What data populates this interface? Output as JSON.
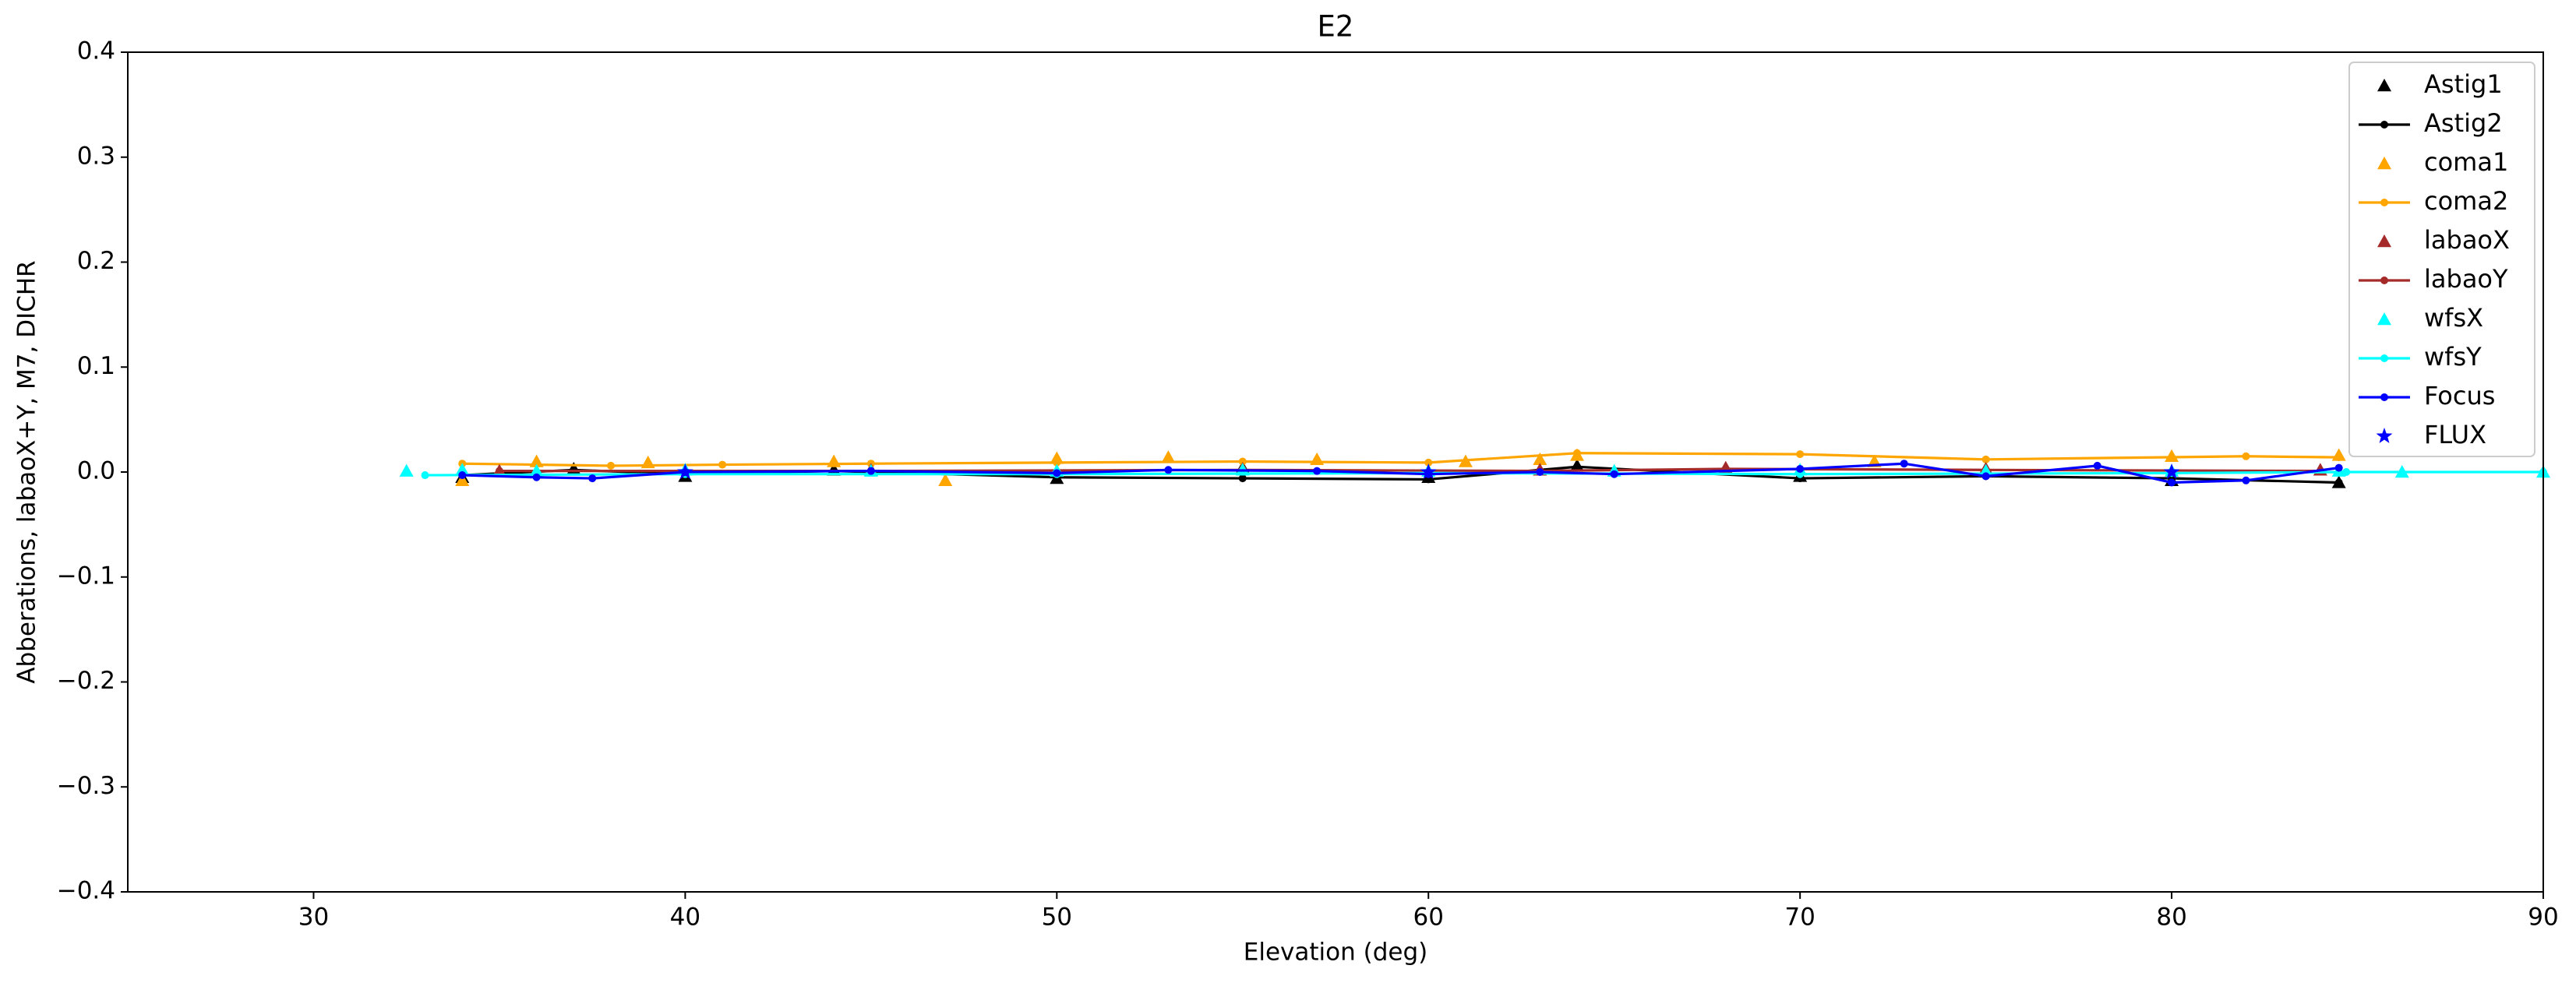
{
  "chart_data": {
    "type": "line",
    "title": "E2",
    "x_label": "Elevation (deg)",
    "y_label": "Abberations, labaoX+Y, M7, DICHR",
    "xlim": [
      25,
      90
    ],
    "xticks": [
      30,
      40,
      50,
      60,
      70,
      80,
      90
    ],
    "ylim": [
      -0.4,
      0.4
    ],
    "yticks": [
      {
        "value": -0.4,
        "label": "−0.4"
      },
      {
        "value": -0.3,
        "label": "−0.3"
      },
      {
        "value": -0.2,
        "label": "−0.2"
      },
      {
        "value": -0.1,
        "label": "−0.1"
      },
      {
        "value": 0,
        "label": "0.0"
      },
      0.1,
      0.2,
      0.3,
      0.4
    ],
    "grid": false,
    "legend": "upper right",
    "series": [
      {
        "name": "Astig1",
        "color": "#000000",
        "marker": "triangle",
        "line": false,
        "x": [
          34,
          37,
          40,
          44,
          50,
          55,
          60,
          64,
          70,
          75,
          80,
          84.5
        ],
        "values": [
          -0.005,
          0.003,
          -0.004,
          0.002,
          -0.006,
          0.004,
          -0.005,
          0.006,
          -0.004,
          0.003,
          -0.008,
          -0.01
        ]
      },
      {
        "name": "Astig2",
        "color": "#000000",
        "marker": "dot",
        "line": true,
        "x": [
          34,
          37,
          40,
          44,
          50,
          55,
          60,
          64,
          70,
          75,
          80,
          84.5
        ],
        "values": [
          -0.003,
          0.002,
          -0.002,
          0.001,
          -0.005,
          -0.006,
          -0.007,
          0.005,
          -0.006,
          -0.004,
          -0.006,
          -0.01
        ]
      },
      {
        "name": "coma1",
        "color": "#ffa500",
        "marker": "triangle",
        "line": false,
        "x": [
          34,
          36,
          39,
          44,
          47,
          50,
          53,
          57,
          61,
          63,
          64,
          72,
          80,
          84.5
        ],
        "values": [
          -0.008,
          0.01,
          0.009,
          0.01,
          -0.008,
          0.013,
          0.014,
          0.012,
          0.01,
          0.012,
          0.016,
          0.01,
          0.015,
          0.016
        ]
      },
      {
        "name": "coma2",
        "color": "#ffa500",
        "marker": "dot",
        "line": true,
        "x": [
          34,
          38,
          41,
          45,
          50,
          55,
          60,
          64,
          70,
          75,
          82,
          84.5
        ],
        "values": [
          0.008,
          0.006,
          0.007,
          0.008,
          0.009,
          0.01,
          0.009,
          0.018,
          0.017,
          0.012,
          0.015,
          0.014
        ]
      },
      {
        "name": "labaoX",
        "color": "#a52a2a",
        "marker": "triangle",
        "line": false,
        "x": [
          35,
          45,
          55,
          63,
          68,
          75,
          84
        ],
        "values": [
          0.001,
          0.002,
          0.003,
          0.002,
          0.004,
          0.003,
          0.002
        ]
      },
      {
        "name": "labaoY",
        "color": "#a52a2a",
        "marker": "dot",
        "line": true,
        "x": [
          35,
          45,
          55,
          63,
          68,
          75,
          84
        ],
        "values": [
          0.001,
          0.001,
          0.002,
          0.001,
          0.003,
          0.002,
          0.001
        ]
      },
      {
        "name": "wfsX",
        "color": "#00ffff",
        "marker": "triangle",
        "line": false,
        "x": [
          32.5,
          34,
          36,
          40,
          45,
          50,
          55,
          60,
          65,
          70,
          75,
          80,
          84.5,
          86.2,
          90
        ],
        "values": [
          0.001,
          0.002,
          0.001,
          0.002,
          0.001,
          0.001,
          0.002,
          0.001,
          0.001,
          0.002,
          0.001,
          0.001,
          0.001,
          0,
          0
        ]
      },
      {
        "name": "wfsY",
        "color": "#00ffff",
        "marker": "dot",
        "line": true,
        "x": [
          33,
          40,
          50,
          60,
          70,
          80,
          84.7,
          90
        ],
        "values": [
          -0.003,
          -0.002,
          -0.002,
          -0.001,
          -0.002,
          -0.001,
          0,
          0
        ]
      },
      {
        "name": "Focus",
        "color": "#0000ff",
        "marker": "dot",
        "line": true,
        "x": [
          34,
          36,
          37.5,
          40,
          45,
          50,
          53,
          57,
          60,
          63,
          65,
          70,
          72.8,
          75,
          78,
          80,
          82,
          84.5
        ],
        "values": [
          -0.003,
          -0.005,
          -0.006,
          0,
          0.001,
          -0.001,
          0.002,
          0.001,
          -0.002,
          0,
          -0.002,
          0.003,
          0.008,
          -0.004,
          0.006,
          -0.01,
          -0.008,
          0.004
        ]
      },
      {
        "name": "FLUX",
        "color": "#0000ff",
        "marker": "star",
        "line": false,
        "x": [
          40,
          60,
          80
        ],
        "values": [
          0,
          0,
          0
        ]
      }
    ]
  }
}
